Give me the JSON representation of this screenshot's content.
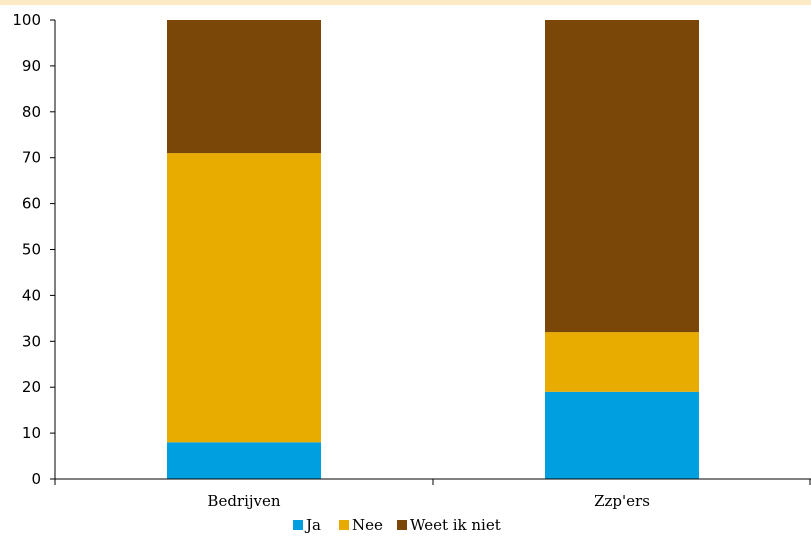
{
  "colors": {
    "band": "#fde9c4",
    "ja": "#009fe0",
    "nee": "#e8ab00",
    "weet": "#7a4708"
  },
  "chart_data": {
    "type": "bar",
    "stacked": true,
    "title": "",
    "xlabel": "",
    "ylabel": "",
    "ylim": [
      0,
      100
    ],
    "yticks": [
      0,
      10,
      20,
      30,
      40,
      50,
      60,
      70,
      80,
      90,
      100
    ],
    "categories": [
      "Bedrijven",
      "Zzp'ers"
    ],
    "series": [
      {
        "name": "Ja",
        "values": [
          8,
          19
        ],
        "color": "#009fe0"
      },
      {
        "name": "Nee",
        "values": [
          63,
          13
        ],
        "color": "#e8ab00"
      },
      {
        "name": "Weet ik niet",
        "values": [
          29,
          68
        ],
        "color": "#7a4708"
      }
    ],
    "grid": false,
    "legend": "bottom-center"
  }
}
